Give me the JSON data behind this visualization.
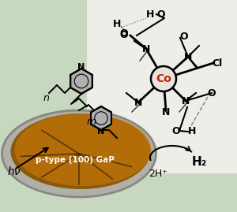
{
  "bg_color": "#c8d8c0",
  "wafer_outer_color": "#c0c0b8",
  "wafer_inner_color": "#9b6010",
  "wafer_highlight": "#c87818",
  "wafer_label": "p-type (100) GaP",
  "wafer_label_color": "white",
  "hv_label": "hν",
  "n_label": "n",
  "m_label": "m",
  "Co_label": "Co",
  "Co_color": "#cc2200",
  "Cl_label": "Cl",
  "H2_label": "H₂",
  "H2plus_label": "2H⁺",
  "figsize": [
    3.0,
    2.69
  ],
  "dpi": 100,
  "white_bg": "#f4f2ee"
}
